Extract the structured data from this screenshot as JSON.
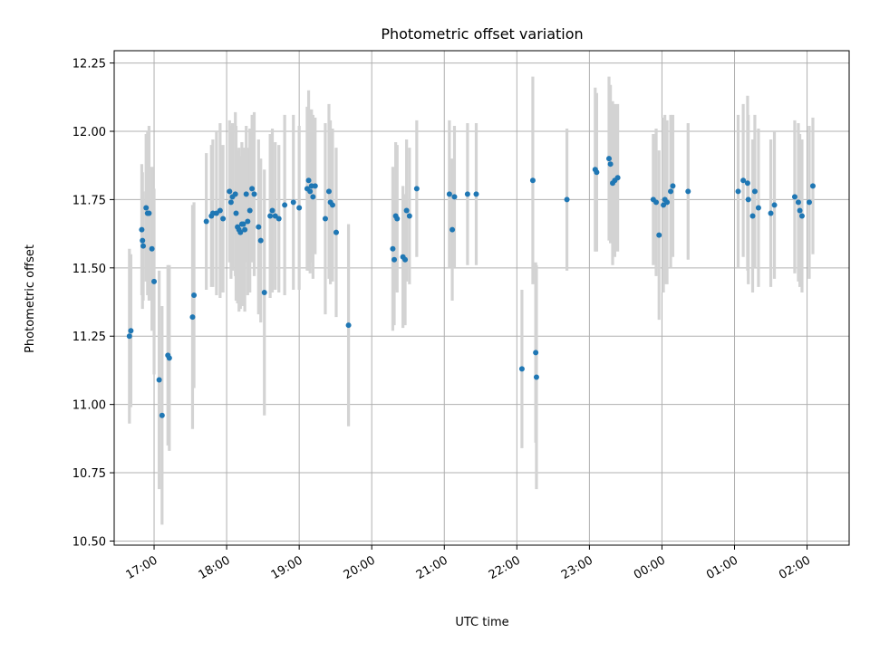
{
  "chart_data": {
    "type": "scatter",
    "title": "Photometric offset variation",
    "xlabel": "UTC time",
    "ylabel": "Photometric offset",
    "x_unit": "hours (UTC, continuing past midnight)",
    "xlim": [
      16.45,
      26.58
    ],
    "ylim": [
      10.485,
      12.295
    ],
    "grid": true,
    "colors": {
      "points": "#1f77b4",
      "errorbars": "#d3d3d3",
      "grid": "#b0b0b0"
    },
    "xticks": [
      {
        "value": 17,
        "label": "17:00"
      },
      {
        "value": 18,
        "label": "18:00"
      },
      {
        "value": 19,
        "label": "19:00"
      },
      {
        "value": 20,
        "label": "20:00"
      },
      {
        "value": 21,
        "label": "21:00"
      },
      {
        "value": 22,
        "label": "22:00"
      },
      {
        "value": 23,
        "label": "23:00"
      },
      {
        "value": 24,
        "label": "00:00"
      },
      {
        "value": 25,
        "label": "01:00"
      },
      {
        "value": 26,
        "label": "02:00"
      }
    ],
    "yticks": [
      {
        "value": 10.5,
        "label": "10.50"
      },
      {
        "value": 10.75,
        "label": "10.75"
      },
      {
        "value": 11.0,
        "label": "11.00"
      },
      {
        "value": 11.25,
        "label": "11.25"
      },
      {
        "value": 11.5,
        "label": "11.50"
      },
      {
        "value": 11.75,
        "label": "11.75"
      },
      {
        "value": 12.0,
        "label": "12.00"
      },
      {
        "value": 12.25,
        "label": "12.25"
      }
    ],
    "points": [
      {
        "x": 16.66,
        "y": 11.25,
        "err": 0.32
      },
      {
        "x": 16.68,
        "y": 11.27,
        "err": 0.28
      },
      {
        "x": 16.83,
        "y": 11.64,
        "err": 0.24
      },
      {
        "x": 16.84,
        "y": 11.6,
        "err": 0.25
      },
      {
        "x": 16.85,
        "y": 11.58,
        "err": 0.2
      },
      {
        "x": 16.89,
        "y": 11.72,
        "err": 0.27
      },
      {
        "x": 16.91,
        "y": 11.7,
        "err": 0.3
      },
      {
        "x": 16.93,
        "y": 11.7,
        "err": 0.32
      },
      {
        "x": 16.97,
        "y": 11.57,
        "err": 0.3
      },
      {
        "x": 17.0,
        "y": 11.45,
        "err": 0.34
      },
      {
        "x": 17.07,
        "y": 11.09,
        "err": 0.4
      },
      {
        "x": 17.11,
        "y": 10.96,
        "err": 0.4
      },
      {
        "x": 17.19,
        "y": 11.18,
        "err": 0.33
      },
      {
        "x": 17.21,
        "y": 11.17,
        "err": 0.34
      },
      {
        "x": 17.53,
        "y": 11.32,
        "err": 0.41
      },
      {
        "x": 17.55,
        "y": 11.4,
        "err": 0.34
      },
      {
        "x": 17.72,
        "y": 11.67,
        "err": 0.25
      },
      {
        "x": 17.79,
        "y": 11.69,
        "err": 0.26
      },
      {
        "x": 17.81,
        "y": 11.7,
        "err": 0.27
      },
      {
        "x": 17.86,
        "y": 11.7,
        "err": 0.3
      },
      {
        "x": 17.91,
        "y": 11.71,
        "err": 0.32
      },
      {
        "x": 17.95,
        "y": 11.68,
        "err": 0.27
      },
      {
        "x": 18.04,
        "y": 11.78,
        "err": 0.26
      },
      {
        "x": 18.06,
        "y": 11.74,
        "err": 0.28
      },
      {
        "x": 18.08,
        "y": 11.76,
        "err": 0.27
      },
      {
        "x": 18.12,
        "y": 11.77,
        "err": 0.3
      },
      {
        "x": 18.13,
        "y": 11.7,
        "err": 0.32
      },
      {
        "x": 18.15,
        "y": 11.65,
        "err": 0.28
      },
      {
        "x": 18.17,
        "y": 11.64,
        "err": 0.3
      },
      {
        "x": 18.19,
        "y": 11.63,
        "err": 0.28
      },
      {
        "x": 18.21,
        "y": 11.66,
        "err": 0.3
      },
      {
        "x": 18.23,
        "y": 11.66,
        "err": 0.28
      },
      {
        "x": 18.25,
        "y": 11.64,
        "err": 0.3
      },
      {
        "x": 18.27,
        "y": 11.77,
        "err": 0.25
      },
      {
        "x": 18.29,
        "y": 11.67,
        "err": 0.27
      },
      {
        "x": 18.32,
        "y": 11.71,
        "err": 0.3
      },
      {
        "x": 18.35,
        "y": 11.79,
        "err": 0.27
      },
      {
        "x": 18.38,
        "y": 11.77,
        "err": 0.3
      },
      {
        "x": 18.44,
        "y": 11.65,
        "err": 0.32
      },
      {
        "x": 18.47,
        "y": 11.6,
        "err": 0.3
      },
      {
        "x": 18.52,
        "y": 11.41,
        "err": 0.45
      },
      {
        "x": 18.6,
        "y": 11.69,
        "err": 0.3
      },
      {
        "x": 18.63,
        "y": 11.71,
        "err": 0.3
      },
      {
        "x": 18.67,
        "y": 11.69,
        "err": 0.27
      },
      {
        "x": 18.72,
        "y": 11.68,
        "err": 0.27
      },
      {
        "x": 18.8,
        "y": 11.73,
        "err": 0.33
      },
      {
        "x": 18.92,
        "y": 11.74,
        "err": 0.32
      },
      {
        "x": 19.0,
        "y": 11.72,
        "err": 0.3
      },
      {
        "x": 19.11,
        "y": 11.79,
        "err": 0.3
      },
      {
        "x": 19.13,
        "y": 11.82,
        "err": 0.33
      },
      {
        "x": 19.15,
        "y": 11.78,
        "err": 0.3
      },
      {
        "x": 19.17,
        "y": 11.8,
        "err": 0.28
      },
      {
        "x": 19.19,
        "y": 11.76,
        "err": 0.3
      },
      {
        "x": 19.22,
        "y": 11.8,
        "err": 0.25
      },
      {
        "x": 19.36,
        "y": 11.68,
        "err": 0.35
      },
      {
        "x": 19.41,
        "y": 11.78,
        "err": 0.32
      },
      {
        "x": 19.43,
        "y": 11.74,
        "err": 0.3
      },
      {
        "x": 19.46,
        "y": 11.73,
        "err": 0.28
      },
      {
        "x": 19.51,
        "y": 11.63,
        "err": 0.31
      },
      {
        "x": 19.68,
        "y": 11.29,
        "err": 0.37
      },
      {
        "x": 20.29,
        "y": 11.57,
        "err": 0.3
      },
      {
        "x": 20.31,
        "y": 11.53,
        "err": 0.24
      },
      {
        "x": 20.33,
        "y": 11.69,
        "err": 0.27
      },
      {
        "x": 20.35,
        "y": 11.68,
        "err": 0.27
      },
      {
        "x": 20.43,
        "y": 11.54,
        "err": 0.26
      },
      {
        "x": 20.46,
        "y": 11.53,
        "err": 0.24
      },
      {
        "x": 20.48,
        "y": 11.71,
        "err": 0.26
      },
      {
        "x": 20.52,
        "y": 11.69,
        "err": 0.25
      },
      {
        "x": 20.62,
        "y": 11.79,
        "err": 0.25
      },
      {
        "x": 21.07,
        "y": 11.77,
        "err": 0.27
      },
      {
        "x": 21.11,
        "y": 11.64,
        "err": 0.26
      },
      {
        "x": 21.14,
        "y": 11.76,
        "err": 0.26
      },
      {
        "x": 21.32,
        "y": 11.77,
        "err": 0.26
      },
      {
        "x": 21.44,
        "y": 11.77,
        "err": 0.26
      },
      {
        "x": 22.07,
        "y": 11.13,
        "err": 0.29
      },
      {
        "x": 22.22,
        "y": 11.82,
        "err": 0.38
      },
      {
        "x": 22.26,
        "y": 11.19,
        "err": 0.33
      },
      {
        "x": 22.27,
        "y": 11.1,
        "err": 0.41
      },
      {
        "x": 22.69,
        "y": 11.75,
        "err": 0.26
      },
      {
        "x": 23.08,
        "y": 11.86,
        "err": 0.3
      },
      {
        "x": 23.1,
        "y": 11.85,
        "err": 0.29
      },
      {
        "x": 23.27,
        "y": 11.9,
        "err": 0.3
      },
      {
        "x": 23.29,
        "y": 11.88,
        "err": 0.29
      },
      {
        "x": 23.32,
        "y": 11.81,
        "err": 0.3
      },
      {
        "x": 23.35,
        "y": 11.82,
        "err": 0.28
      },
      {
        "x": 23.39,
        "y": 11.83,
        "err": 0.27
      },
      {
        "x": 23.88,
        "y": 11.75,
        "err": 0.24
      },
      {
        "x": 23.92,
        "y": 11.74,
        "err": 0.27
      },
      {
        "x": 23.96,
        "y": 11.62,
        "err": 0.31
      },
      {
        "x": 24.02,
        "y": 11.73,
        "err": 0.32
      },
      {
        "x": 24.04,
        "y": 11.75,
        "err": 0.31
      },
      {
        "x": 24.07,
        "y": 11.74,
        "err": 0.3
      },
      {
        "x": 24.12,
        "y": 11.78,
        "err": 0.28
      },
      {
        "x": 24.15,
        "y": 11.8,
        "err": 0.26
      },
      {
        "x": 24.36,
        "y": 11.78,
        "err": 0.25
      },
      {
        "x": 25.05,
        "y": 11.78,
        "err": 0.28
      },
      {
        "x": 25.12,
        "y": 11.82,
        "err": 0.28
      },
      {
        "x": 25.18,
        "y": 11.81,
        "err": 0.32
      },
      {
        "x": 25.19,
        "y": 11.75,
        "err": 0.31
      },
      {
        "x": 25.25,
        "y": 11.69,
        "err": 0.28
      },
      {
        "x": 25.28,
        "y": 11.78,
        "err": 0.28
      },
      {
        "x": 25.33,
        "y": 11.72,
        "err": 0.29
      },
      {
        "x": 25.5,
        "y": 11.7,
        "err": 0.27
      },
      {
        "x": 25.55,
        "y": 11.73,
        "err": 0.27
      },
      {
        "x": 25.83,
        "y": 11.76,
        "err": 0.28
      },
      {
        "x": 25.88,
        "y": 11.74,
        "err": 0.29
      },
      {
        "x": 25.9,
        "y": 11.71,
        "err": 0.28
      },
      {
        "x": 25.93,
        "y": 11.69,
        "err": 0.28
      },
      {
        "x": 26.03,
        "y": 11.74,
        "err": 0.28
      },
      {
        "x": 26.08,
        "y": 11.8,
        "err": 0.25
      }
    ]
  }
}
